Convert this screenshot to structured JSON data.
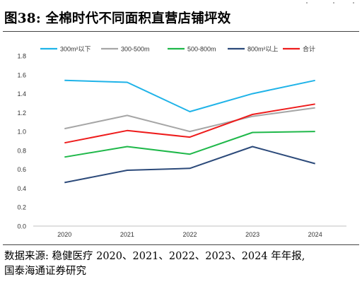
{
  "header": {
    "title": "图38:  全棉时代不同面积直营店铺坪效"
  },
  "source": {
    "line1": "数据来源: 稳健医疗 2020、2021、2022、2023、2024 年年报,",
    "line2": "国泰海通证券研究"
  },
  "chart_data": {
    "type": "line",
    "title": "",
    "xlabel": "",
    "ylabel": "",
    "categories": [
      "2020",
      "2021",
      "2022",
      "2023",
      "2024"
    ],
    "ylim": [
      0.0,
      1.8
    ],
    "yticks": [
      "0.0",
      "0.2",
      "0.4",
      "0.6",
      "0.8",
      "1.0",
      "1.2",
      "1.4",
      "1.6",
      "1.8"
    ],
    "grid": false,
    "legend_position": "top",
    "series": [
      {
        "name": "300m²以下",
        "color": "#1fb3e8",
        "values": [
          1.54,
          1.52,
          1.21,
          1.4,
          1.54
        ]
      },
      {
        "name": "300-500m",
        "color": "#a6a6a6",
        "values": [
          1.03,
          1.17,
          1.0,
          1.16,
          1.25
        ]
      },
      {
        "name": "500-800m",
        "color": "#1fb84a",
        "values": [
          0.73,
          0.84,
          0.76,
          0.99,
          1.0
        ]
      },
      {
        "name": "800m²以上",
        "color": "#2c4a7a",
        "values": [
          0.46,
          0.59,
          0.61,
          0.84,
          0.66
        ]
      },
      {
        "name": "合计",
        "color": "#ee1c1c",
        "values": [
          0.88,
          1.01,
          0.94,
          1.18,
          1.29
        ]
      }
    ]
  }
}
